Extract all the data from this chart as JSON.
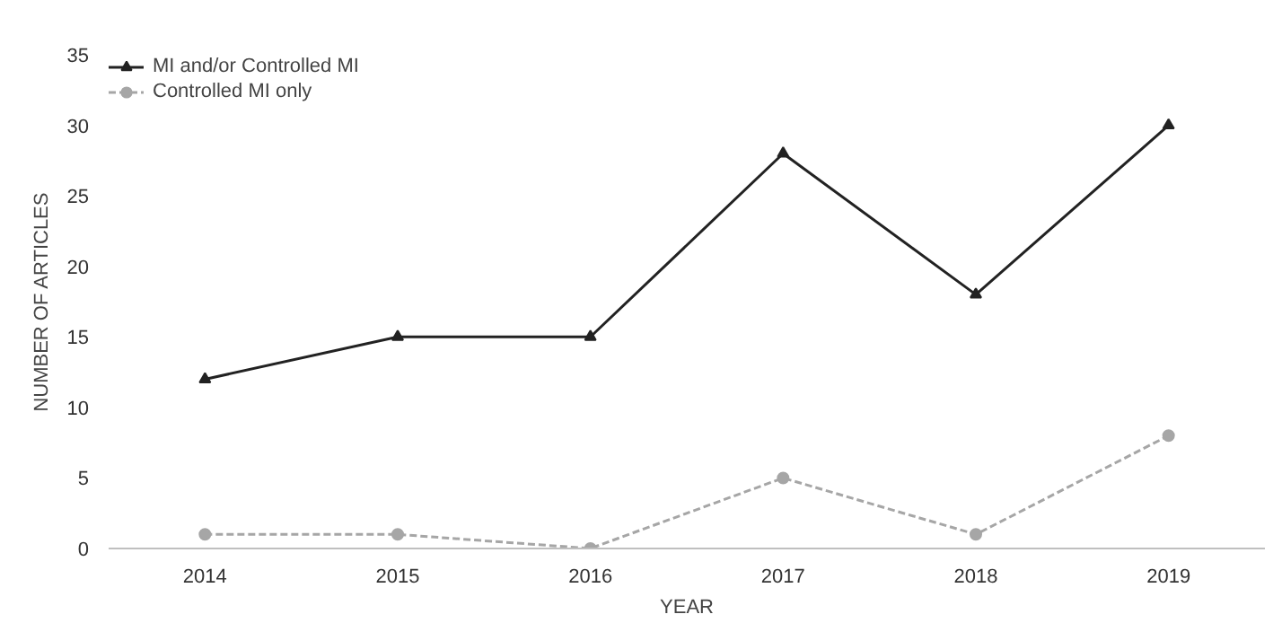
{
  "chart_data": {
    "type": "line",
    "xlabel": "YEAR",
    "ylabel": "NUMBER OF ARTICLES",
    "categories": [
      "2014",
      "2015",
      "2016",
      "2017",
      "2018",
      "2019"
    ],
    "series": [
      {
        "name": "MI and/or Controlled MI",
        "color": "#222222",
        "values": [
          12,
          15,
          15,
          28,
          18,
          30
        ],
        "marker": "triangle",
        "line_style": "solid"
      },
      {
        "name": "Controlled MI only",
        "color": "#a6a6a6",
        "values": [
          1,
          1,
          0,
          5,
          1,
          8
        ],
        "marker": "circle",
        "line_style": "dashed"
      }
    ],
    "ylim": [
      0,
      35
    ],
    "yticks": [
      0,
      5,
      10,
      15,
      20,
      25,
      30,
      35
    ],
    "grid": false,
    "legend": "top left"
  }
}
